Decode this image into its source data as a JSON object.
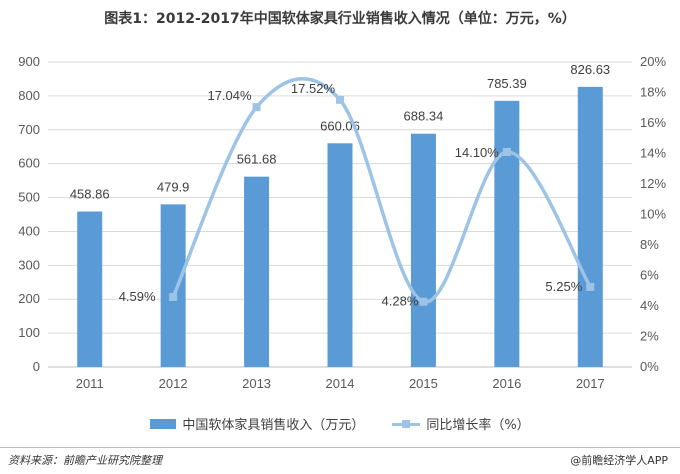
{
  "title": "图表1：2012-2017年中国软体家具行业销售收入情况（单位：万元，%）",
  "footer": {
    "source": "资料来源：前瞻产业研究院整理",
    "brand": "@前瞻经济学人APP"
  },
  "chart_data": {
    "type": "bar",
    "categories": [
      "2011",
      "2012",
      "2013",
      "2014",
      "2015",
      "2016",
      "2017"
    ],
    "series": [
      {
        "name": "中国软体家具销售收入（万元）",
        "type": "bar",
        "axis": "left",
        "values": [
          458.86,
          479.9,
          561.68,
          660.06,
          688.34,
          785.39,
          826.63
        ],
        "labels": [
          "458.86",
          "479.9",
          "561.68",
          "660.06",
          "688.34",
          "785.39",
          "826.63"
        ],
        "color": "#5b9bd5"
      },
      {
        "name": "同比增长率（%）",
        "type": "line",
        "axis": "right",
        "smooth": true,
        "values": [
          null,
          4.59,
          17.04,
          17.52,
          4.28,
          14.1,
          5.25
        ],
        "labels": [
          null,
          "4.59%",
          "17.04%",
          "17.52%",
          "4.28%",
          "14.10%",
          "5.25%"
        ],
        "color": "#9dc3e6"
      }
    ],
    "y_left": {
      "min": 0,
      "max": 900,
      "ticks": [
        "0",
        "100",
        "200",
        "300",
        "400",
        "500",
        "600",
        "700",
        "800",
        "900"
      ]
    },
    "y_right": {
      "min": 0,
      "max": 20,
      "ticks": [
        "0%",
        "2%",
        "4%",
        "6%",
        "8%",
        "10%",
        "12%",
        "14%",
        "16%",
        "18%",
        "20%"
      ]
    },
    "grid": true,
    "legend_position": "bottom"
  }
}
